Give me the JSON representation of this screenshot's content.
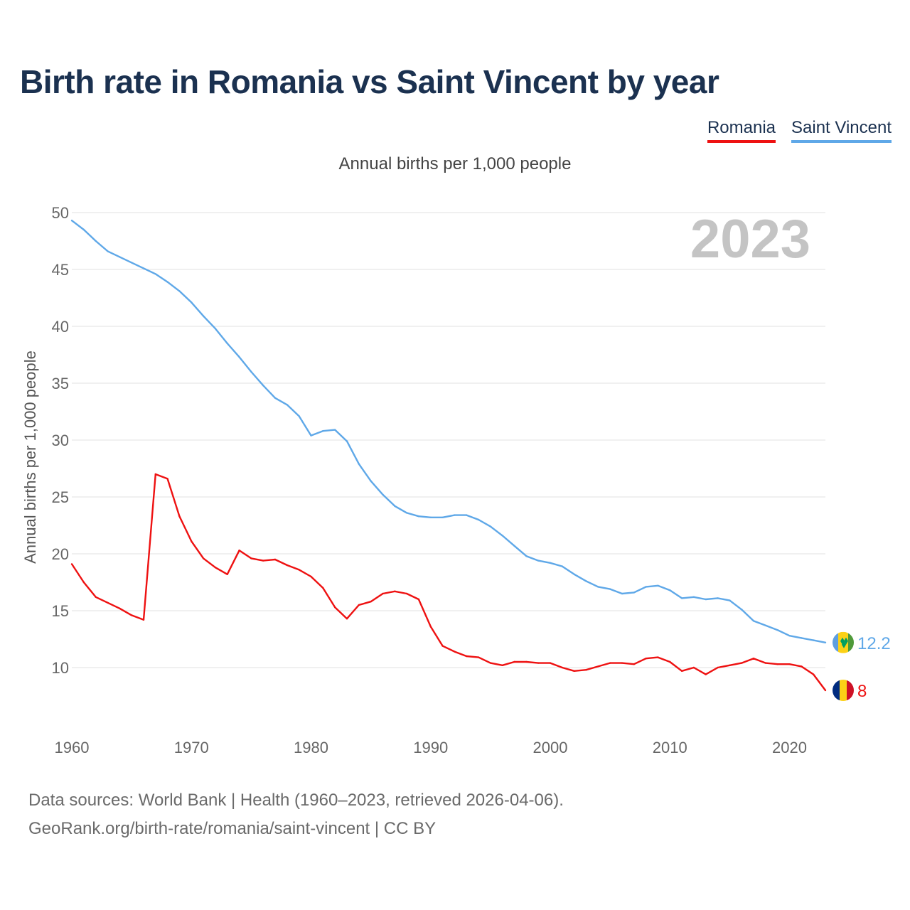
{
  "title": "Birth rate in Romania vs Saint Vincent by year",
  "subtitle": "Annual births per 1,000 people",
  "legend": [
    {
      "label": "Romania",
      "color": "#ee1111"
    },
    {
      "label": "Saint Vincent",
      "color": "#5fa8e8"
    }
  ],
  "sources": {
    "line1": "Data sources: World Bank | Health (1960–2023, retrieved 2026-04-06).",
    "line2": "GeoRank.org/birth-rate/romania/saint-vincent | CC BY"
  },
  "chart_data": {
    "type": "line",
    "title": "Birth rate in Romania vs Saint Vincent by year",
    "xlabel": "",
    "ylabel": "Annual births per 1,000 people",
    "year_label": "2023",
    "xlim": [
      1960,
      2023
    ],
    "ylim": [
      5,
      50
    ],
    "xticks": [
      1960,
      1970,
      1980,
      1990,
      2000,
      2010,
      2020
    ],
    "yticks": [
      10,
      15,
      20,
      25,
      30,
      35,
      40,
      45,
      50
    ],
    "grid": true,
    "x": [
      1960,
      1961,
      1962,
      1963,
      1964,
      1965,
      1966,
      1967,
      1968,
      1969,
      1970,
      1971,
      1972,
      1973,
      1974,
      1975,
      1976,
      1977,
      1978,
      1979,
      1980,
      1981,
      1982,
      1983,
      1984,
      1985,
      1986,
      1987,
      1988,
      1989,
      1990,
      1991,
      1992,
      1993,
      1994,
      1995,
      1996,
      1997,
      1998,
      1999,
      2000,
      2001,
      2002,
      2003,
      2004,
      2005,
      2006,
      2007,
      2008,
      2009,
      2010,
      2011,
      2012,
      2013,
      2014,
      2015,
      2016,
      2017,
      2018,
      2019,
      2020,
      2021,
      2022,
      2023
    ],
    "series": [
      {
        "name": "Romania",
        "color": "#ee1111",
        "end_label": "8",
        "values": [
          19.1,
          17.5,
          16.2,
          15.7,
          15.2,
          14.6,
          14.2,
          27.0,
          26.6,
          23.3,
          21.1,
          19.6,
          18.8,
          18.2,
          20.3,
          19.6,
          19.4,
          19.5,
          19.0,
          18.6,
          18.0,
          17.0,
          15.3,
          14.3,
          15.5,
          15.8,
          16.5,
          16.7,
          16.5,
          16.0,
          13.6,
          11.9,
          11.4,
          11.0,
          10.9,
          10.4,
          10.2,
          10.5,
          10.5,
          10.4,
          10.4,
          10.0,
          9.7,
          9.8,
          10.1,
          10.4,
          10.4,
          10.3,
          10.8,
          10.9,
          10.5,
          9.7,
          10.0,
          9.4,
          10.0,
          10.2,
          10.4,
          10.8,
          10.4,
          10.3,
          10.3,
          10.1,
          9.4,
          8.0
        ]
      },
      {
        "name": "Saint Vincent",
        "color": "#5fa8e8",
        "end_label": "12.2",
        "values": [
          49.3,
          48.5,
          47.5,
          46.6,
          46.1,
          45.6,
          45.1,
          44.6,
          43.9,
          43.1,
          42.1,
          40.9,
          39.8,
          38.5,
          37.3,
          36.0,
          34.8,
          33.7,
          33.1,
          32.1,
          30.4,
          30.8,
          30.9,
          29.9,
          27.9,
          26.4,
          25.2,
          24.2,
          23.6,
          23.3,
          23.2,
          23.2,
          23.4,
          23.4,
          23.0,
          22.4,
          21.6,
          20.7,
          19.8,
          19.4,
          19.2,
          18.9,
          18.2,
          17.6,
          17.1,
          16.9,
          16.5,
          16.6,
          17.1,
          17.2,
          16.8,
          16.1,
          16.2,
          16.0,
          16.1,
          15.9,
          15.1,
          14.1,
          13.7,
          13.3,
          12.8,
          12.6,
          12.4,
          12.2
        ]
      }
    ]
  }
}
